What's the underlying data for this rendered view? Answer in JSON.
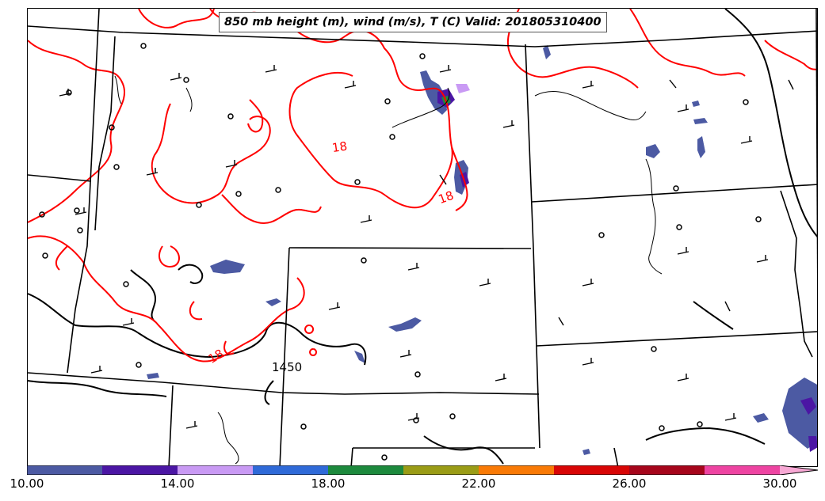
{
  "title": "850 mb height (m), wind (m/s), T (C) Valid: 201805310400",
  "contour_labels": {
    "temperature": [
      "18",
      "18",
      "18"
    ],
    "height": "1450"
  },
  "colorbar": {
    "colors": [
      "#4c5aa3",
      "#4b16a4",
      "#c99af4",
      "#2f6ad8",
      "#1d8a3d",
      "#9a9c16",
      "#f97a06",
      "#d80606",
      "#a6061c",
      "#ee44a2",
      "#f7a8d4"
    ],
    "tick_labels": [
      "10.00",
      "14.00",
      "18.00",
      "22.00",
      "26.00",
      "30.00"
    ],
    "range": [
      10,
      31
    ]
  },
  "styles": {
    "temperature_contour_color": "#ff0000",
    "height_contour_color": "#000000",
    "border_color": "#000000"
  }
}
